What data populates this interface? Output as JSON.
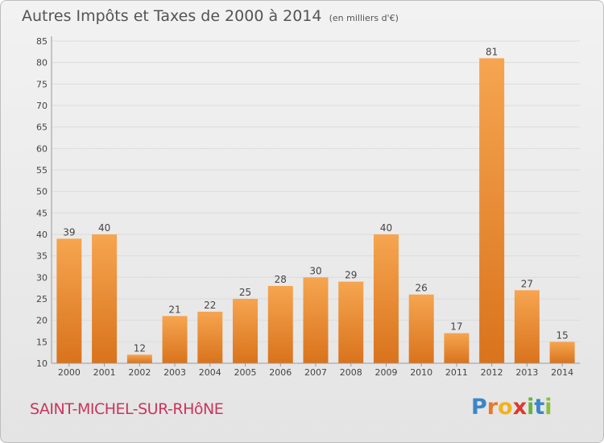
{
  "header": {
    "title": "Autres Impôts et Taxes de 2000 à 2014",
    "unit": "(en milliers d'€)"
  },
  "footer": {
    "commune": "SAINT-MICHEL-SUR-RHôNE",
    "brand_letters": [
      "P",
      "r",
      "o",
      "x",
      "i",
      "t",
      "i"
    ],
    "brand_colors": [
      "#3b86c8",
      "#e8782a",
      "#f2b21e",
      "#d93a2f",
      "#6ab23e",
      "#3b86c8",
      "#8bbf3c"
    ]
  },
  "colors": {
    "bar_light": "#f6a550",
    "bar_dark": "#d9731c",
    "label_text": "#444444",
    "gridline": "#dcdcdc",
    "commune_text": "#c8365f"
  },
  "chart_data": {
    "type": "bar",
    "categories": [
      "2000",
      "2001",
      "2002",
      "2003",
      "2004",
      "2005",
      "2006",
      "2007",
      "2008",
      "2009",
      "2010",
      "2011",
      "2012",
      "2013",
      "2014"
    ],
    "values": [
      39,
      40,
      12,
      21,
      22,
      25,
      28,
      30,
      29,
      40,
      26,
      17,
      81,
      27,
      15
    ],
    "title": "Autres Impôts et Taxes de 2000 à 2014",
    "xlabel": "",
    "ylabel": "",
    "ylim": [
      10,
      85
    ],
    "yticks": [
      10,
      15,
      20,
      25,
      30,
      35,
      40,
      45,
      50,
      55,
      60,
      65,
      70,
      75,
      80,
      85
    ],
    "grid": true,
    "data_labels": true
  }
}
